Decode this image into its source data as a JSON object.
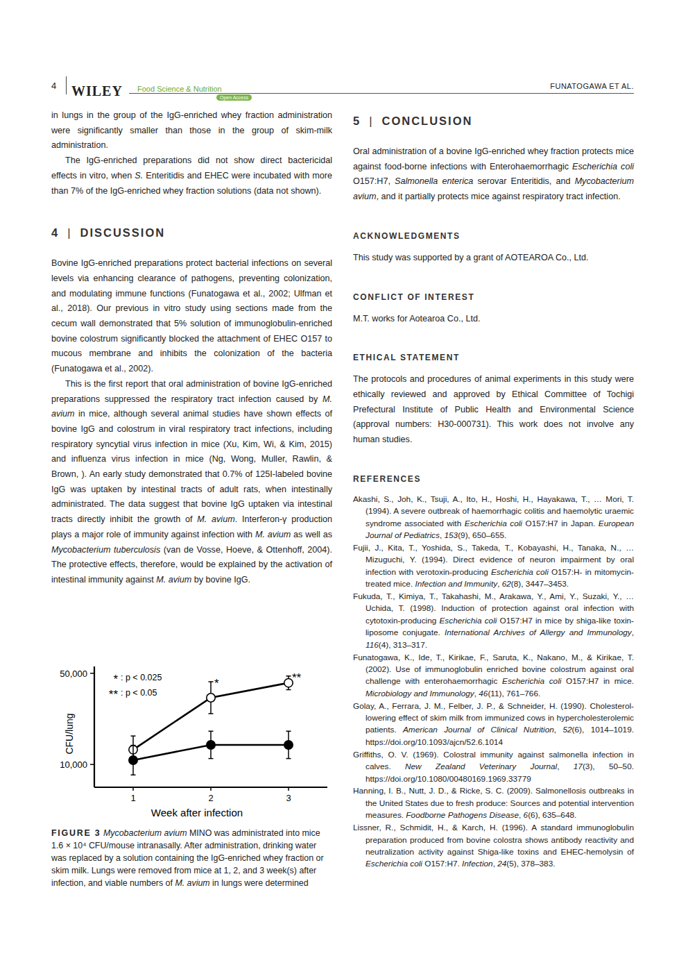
{
  "header": {
    "page_number": "4",
    "publisher": "WILEY",
    "journal": "Food Science & Nutrition",
    "access": "Open Access",
    "running_head": "FUNATOGAWA ET AL."
  },
  "left_column": [
    {
      "paragraph": [
        "in lungs in the group of the IgG-enriched whey fraction administration were significantly smaller than those in the group of skim-milk administration."
      ]
    },
    {
      "paragraph": [
        "The IgG-enriched preparations did not show direct bactericidal effects in vitro, when ",
        {
          "i": "S."
        },
        " Enteritidis and EHEC were incubated with more than 7% of the IgG-enriched whey fraction solutions (data not shown)."
      ]
    },
    {
      "heading": {
        "number": "4",
        "separator": "|",
        "text": "DISCUSSION"
      }
    },
    {
      "paragraph": [
        "Bovine IgG-enriched preparations protect bacterial infections on several levels via enhancing clearance of pathogens, preventing colonization, and modulating immune functions (Funatogawa et al., 2002; Ulfman et al., 2018). Our previous in vitro study using sections made from the cecum wall demonstrated that 5% solution of immunoglobulin-enriched bovine colostrum significantly blocked the attachment of EHEC O157 to mucous membrane and inhibits the colonization of the bacteria (Funatogawa et al., 2002)."
      ]
    },
    {
      "paragraph": [
        "This is the first report that oral administration of bovine IgG-enriched preparations suppressed the respiratory tract infection caused by ",
        {
          "i": "M. avium"
        },
        " in mice, although several animal studies have shown effects of bovine IgG and colostrum in viral respiratory tract infections, including respiratory syncytial virus infection in mice (Xu, Kim, Wi, & Kim, 2015) and influenza virus infection in mice (Ng, Wong, Muller, Rawlin, & Brown, ). An early study demonstrated that 0.7% of 125I-labeled bovine IgG was uptaken by intestinal tracts of adult rats, when intestinally administrated. The data suggest that bovine IgG uptaken via intestinal tracts directly inhibit the growth of ",
        {
          "i": "M. avium"
        },
        ". Interferon-γ production plays a major role of immunity against infection with ",
        {
          "i": "M. avium"
        },
        " as well as ",
        {
          "i": "Mycobacterium tuberculosis"
        },
        " (van de Vosse, Hoeve, & Ottenhoff, 2004). The protective effects, therefore, would be explained by the activation of intestinal immunity against ",
        {
          "i": "M. avium"
        },
        " by bovine IgG."
      ]
    }
  ],
  "chart_data": {
    "type": "line",
    "xlabel": "Week after infection",
    "ylabel": "CFU/lung",
    "x": [
      1,
      2,
      3
    ],
    "xlim": [
      0.5,
      3.5
    ],
    "xticks": [
      1,
      2,
      3
    ],
    "ylim": [
      0,
      53000
    ],
    "yticks": [
      {
        "value": 10000,
        "label": "10,000"
      },
      {
        "value": 50000,
        "label": "50,000"
      }
    ],
    "series": [
      {
        "marker": "open-circle",
        "color": "#000000",
        "values": [
          16500,
          39300,
          45800
        ],
        "errors": [
          6000,
          7000,
          3000
        ]
      },
      {
        "marker": "filled-circle",
        "color": "#000000",
        "values": [
          11900,
          18600,
          18600
        ],
        "errors": [
          6500,
          6000,
          6000
        ]
      }
    ],
    "annotations": [
      {
        "text": "*",
        "x": 2
      },
      {
        "text": "**",
        "x": 3
      }
    ],
    "significance": [
      {
        "symbol": "*",
        "text": ": p < 0.025"
      },
      {
        "symbol": "**",
        "text": ": p < 0.05"
      }
    ]
  },
  "figure": {
    "label": "FIGURE 3",
    "caption": [
      " ",
      {
        "i": "Mycobacterium avium"
      },
      " MINO was administrated into mice 1.6 × 10⁴ CFU/mouse intranasally. After administration, drinking water was replaced by a solution containing the IgG-enriched whey fraction or skim milk. Lungs were removed from mice at 1, 2, and 3 week(s) after infection, and viable numbers of ",
      {
        "i": "M. avium"
      },
      " in lungs were determined"
    ]
  },
  "right_column": [
    {
      "heading": {
        "number": "5",
        "separator": "|",
        "text": "CONCLUSION"
      }
    },
    {
      "paragraph": [
        "Oral administration of a bovine IgG-enriched whey fraction protects mice against food-borne infections with Enterohaemorrhagic ",
        {
          "i": "Escherichia coli"
        },
        " O157:H7, ",
        {
          "i": "Salmonella enterica"
        },
        " serovar Enteritidis, and ",
        {
          "i": "Mycobacterium avium"
        },
        ", and it partially protects mice against respiratory tract infection."
      ]
    },
    {
      "subheading": "ACKNOWLEDGMENTS"
    },
    {
      "paragraph": [
        "This study was supported by a grant of AOTEAROA Co., Ltd."
      ]
    },
    {
      "subheading": "CONFLICT OF INTEREST"
    },
    {
      "paragraph": [
        "M.T. works for Aotearoa Co., Ltd."
      ]
    },
    {
      "subheading": "ETHICAL STATEMENT"
    },
    {
      "paragraph": [
        "The protocols and procedures of animal experiments in this study were ethically reviewed and approved by Ethical Committee of Tochigi Prefectural Institute of Public Health and Environmental Science (approval numbers: H30-000731). This work does not involve any human studies."
      ]
    },
    {
      "subheading": "REFERENCES"
    },
    {
      "references": [
        [
          "Akashi, S., Joh, K., Tsuji, A., Ito, H., Hoshi, H., Hayakawa, T., … Mori, T. (1994). A severe outbreak of haemorrhagic colitis and haemolytic uraemic syndrome associated with ",
          {
            "i": "Escherichia coli"
          },
          " O157:H7 in Japan. ",
          {
            "i": "European Journal of Pediatrics"
          },
          ", ",
          {
            "i": "153"
          },
          "(9), 650–655."
        ],
        [
          "Fujii, J., Kita, T., Yoshida, S., Takeda, T., Kobayashi, H., Tanaka, N., … Mizuguchi, Y. (1994). Direct evidence of neuron impairment by oral infection with verotoxin-producing ",
          {
            "i": "Escherichia coli"
          },
          " O157:H- in mitomycin-treated mice. ",
          {
            "i": "Infection and Immunity"
          },
          ", ",
          {
            "i": "62"
          },
          "(8), 3447–3453."
        ],
        [
          "Fukuda, T., Kimiya, T., Takahashi, M., Arakawa, Y., Ami, Y., Suzaki, Y., … Uchida, T. (1998). Induction of protection against oral infection with cytotoxin-producing ",
          {
            "i": "Escherichia coli"
          },
          " O157:H7 in mice by shiga-like toxin-liposome conjugate. ",
          {
            "i": "International Archives of Allergy and Immunology"
          },
          ", ",
          {
            "i": "116"
          },
          "(4), 313–317."
        ],
        [
          "Funatogawa, K., Ide, T., Kirikae, F., Saruta, K., Nakano, M., & Kirikae, T. (2002). Use of immunoglobulin enriched bovine colostrum against oral challenge with enterohaemorrhagic ",
          {
            "i": "Escherichia coli"
          },
          " O157:H7 in mice. ",
          {
            "i": "Microbiology and Immunology"
          },
          ", ",
          {
            "i": "46"
          },
          "(11), 761–766."
        ],
        [
          "Golay, A., Ferrara, J. M., Felber, J. P., & Schneider, H. (1990). Cholesterol-lowering effect of skim milk from immunized cows in hypercholesterolemic patients. ",
          {
            "i": "American Journal of Clinical Nutrition"
          },
          ", ",
          {
            "i": "52"
          },
          "(6), 1014–1019. https://doi.org/10.1093/ajcn/52.6.1014"
        ],
        [
          "Griffiths, O. V. (1969). Colostral immunity against salmonella infection in calves. ",
          {
            "i": "New Zealand Veterinary Journal"
          },
          ", ",
          {
            "i": "17"
          },
          "(3), 50–50. https://doi.org/10.1080/00480169.1969.33779"
        ],
        [
          "Hanning, I. B., Nutt, J. D., & Ricke, S. C. (2009). Salmonellosis outbreaks in the United States due to fresh produce: Sources and potential intervention measures. ",
          {
            "i": "Foodborne Pathogens Disease"
          },
          ", ",
          {
            "i": "6"
          },
          "(6), 635–648."
        ],
        [
          "Lissner, R., Schmidit, H., & Karch, H. (1996). A standard immunoglobulin preparation produced from bovine colostra shows antibody reactivity and neutralization activity against Shiga-like toxins and EHEC-hemolysin of ",
          {
            "i": "Escherichia coli"
          },
          " O157:H7. ",
          {
            "i": "Infection"
          },
          ", ",
          {
            "i": "24"
          },
          "(5), 378–383."
        ]
      ]
    }
  ]
}
